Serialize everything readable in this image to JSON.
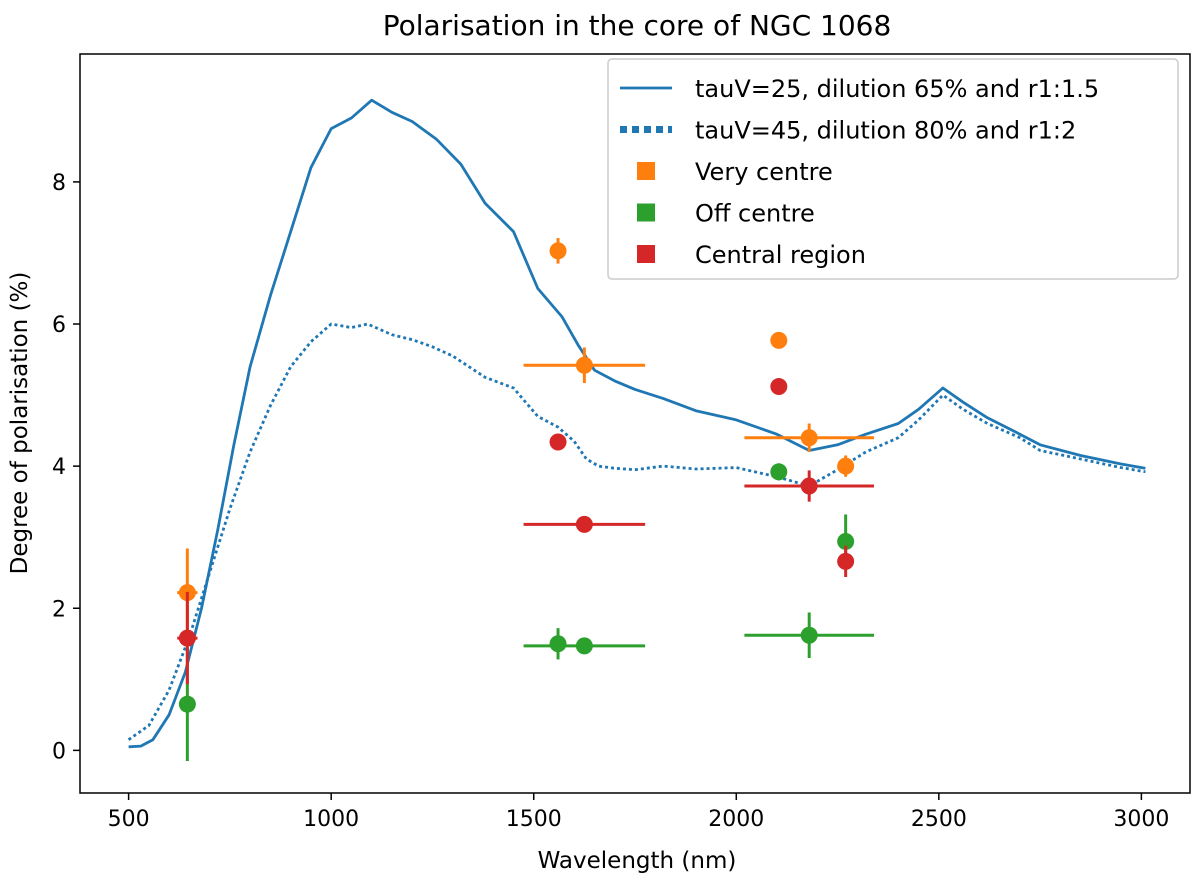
{
  "chart_data": {
    "type": "line",
    "title": "Polarisation in the core of NGC 1068",
    "xlabel": "Wavelength (nm)",
    "ylabel": "Degree of polarisation (%)",
    "xlim": [
      380,
      3120
    ],
    "ylim": [
      -0.6,
      9.8
    ],
    "xticks": [
      500,
      1000,
      1500,
      2000,
      2500,
      3000
    ],
    "yticks": [
      0,
      2,
      4,
      6,
      8
    ],
    "grid": false,
    "legend_position": "top-right",
    "colors": {
      "blue": "#1f77b4",
      "orange": "#ff7f0e",
      "green": "#2ca02c",
      "red": "#d62728"
    },
    "lines": [
      {
        "name": "tauV=25, dilution 65% and r1:1.5",
        "style": "solid",
        "color": "#1f77b4",
        "x": [
          500,
          530,
          560,
          600,
          640,
          680,
          720,
          760,
          800,
          850,
          900,
          950,
          1000,
          1050,
          1100,
          1150,
          1200,
          1260,
          1320,
          1380,
          1450,
          1510,
          1570,
          1610,
          1650,
          1700,
          1750,
          1820,
          1900,
          2000,
          2100,
          2180,
          2250,
          2320,
          2400,
          2450,
          2510,
          2560,
          2620,
          2700,
          2750,
          2850,
          2950,
          3010
        ],
        "y": [
          0.05,
          0.06,
          0.15,
          0.5,
          1.1,
          2.0,
          3.1,
          4.3,
          5.4,
          6.4,
          7.3,
          8.2,
          8.75,
          8.9,
          9.15,
          8.98,
          8.85,
          8.6,
          8.25,
          7.7,
          7.3,
          6.5,
          6.1,
          5.7,
          5.35,
          5.2,
          5.08,
          4.95,
          4.78,
          4.65,
          4.45,
          4.22,
          4.3,
          4.45,
          4.6,
          4.8,
          5.1,
          4.9,
          4.68,
          4.45,
          4.3,
          4.15,
          4.03,
          3.97
        ]
      },
      {
        "name": "tauV=45, dilution 80% and r1:2",
        "style": "dotted",
        "color": "#1f77b4",
        "x": [
          500,
          550,
          600,
          650,
          700,
          750,
          800,
          850,
          900,
          950,
          1000,
          1050,
          1090,
          1150,
          1200,
          1250,
          1300,
          1380,
          1450,
          1510,
          1560,
          1600,
          1630,
          1660,
          1700,
          1750,
          1820,
          1900,
          2000,
          2100,
          2180,
          2250,
          2320,
          2400,
          2450,
          2510,
          2560,
          2620,
          2700,
          2750,
          2850,
          2950,
          3010
        ],
        "y": [
          0.15,
          0.35,
          0.85,
          1.6,
          2.5,
          3.4,
          4.2,
          4.85,
          5.4,
          5.75,
          6.0,
          5.95,
          6.0,
          5.85,
          5.78,
          5.68,
          5.55,
          5.25,
          5.1,
          4.7,
          4.55,
          4.35,
          4.1,
          4.0,
          3.97,
          3.95,
          4.0,
          3.96,
          3.98,
          3.85,
          3.72,
          3.95,
          4.2,
          4.4,
          4.65,
          5.0,
          4.8,
          4.6,
          4.4,
          4.22,
          4.1,
          3.98,
          3.92
        ]
      }
    ],
    "scatter": [
      {
        "name": "Very centre",
        "color": "#ff7f0e",
        "points": [
          {
            "x": 645,
            "y": 2.22,
            "xerr": 25,
            "yerr": 0.62
          },
          {
            "x": 1560,
            "y": 7.03,
            "xerr": 0,
            "yerr": 0.18
          },
          {
            "x": 1625,
            "y": 5.42,
            "xerr": 150,
            "yerr": 0.25
          },
          {
            "x": 2105,
            "y": 5.77,
            "xerr": 0,
            "yerr": 0.1
          },
          {
            "x": 2180,
            "y": 4.4,
            "xerr": 160,
            "yerr": 0.2
          },
          {
            "x": 2270,
            "y": 4.0,
            "xerr": 0,
            "yerr": 0.15
          }
        ]
      },
      {
        "name": "Off centre",
        "color": "#2ca02c",
        "points": [
          {
            "x": 645,
            "y": 0.65,
            "xerr": 0,
            "yerr": 0.8
          },
          {
            "x": 1560,
            "y": 1.5,
            "xerr": 0,
            "yerr": 0.22
          },
          {
            "x": 1625,
            "y": 1.47,
            "xerr": 150,
            "yerr": 0.05
          },
          {
            "x": 2105,
            "y": 3.92,
            "xerr": 0,
            "yerr": 0.12
          },
          {
            "x": 2180,
            "y": 1.62,
            "xerr": 160,
            "yerr": 0.32
          },
          {
            "x": 2270,
            "y": 2.94,
            "xerr": 0,
            "yerr": 0.38
          }
        ]
      },
      {
        "name": "Central region",
        "color": "#d62728",
        "points": [
          {
            "x": 645,
            "y": 1.58,
            "xerr": 25,
            "yerr": 0.65
          },
          {
            "x": 1560,
            "y": 4.34,
            "xerr": 0,
            "yerr": 0.1
          },
          {
            "x": 1625,
            "y": 3.18,
            "xerr": 150,
            "yerr": 0.08
          },
          {
            "x": 2105,
            "y": 5.12,
            "xerr": 0,
            "yerr": 0.1
          },
          {
            "x": 2180,
            "y": 3.72,
            "xerr": 160,
            "yerr": 0.22
          },
          {
            "x": 2270,
            "y": 2.66,
            "xerr": 0,
            "yerr": 0.22
          }
        ]
      }
    ],
    "legend": [
      {
        "label": "tauV=25, dilution 65% and r1:1.5",
        "kind": "solid",
        "color": "#1f77b4"
      },
      {
        "label": "tauV=45, dilution 80% and r1:2",
        "kind": "dotted",
        "color": "#1f77b4"
      },
      {
        "label": "Very centre",
        "kind": "square",
        "color": "#ff7f0e"
      },
      {
        "label": "Off centre",
        "kind": "square",
        "color": "#2ca02c"
      },
      {
        "label": "Central region",
        "kind": "square",
        "color": "#d62728"
      }
    ]
  }
}
